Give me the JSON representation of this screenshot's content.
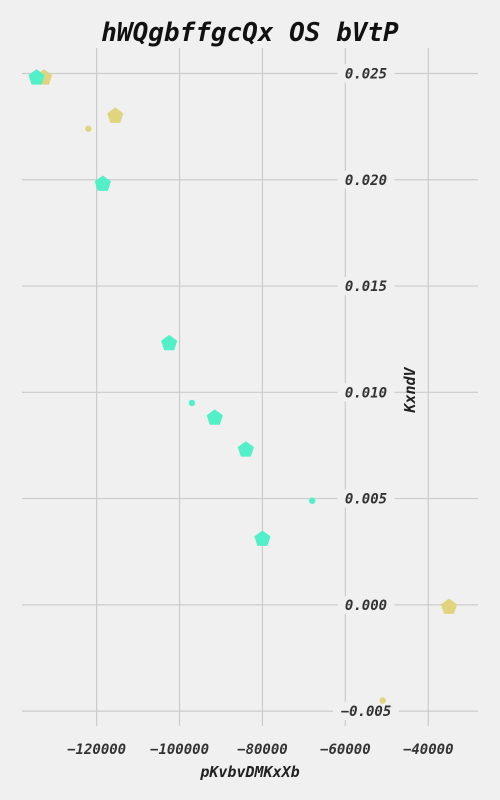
{
  "chart_data": {
    "type": "scatter",
    "title": "hWQgbffgcQx OS bVtP",
    "xlabel": "pKvbvDMKxXb",
    "ylabel": "KxndV",
    "xlim": [
      -138000,
      -28000
    ],
    "ylim": [
      -0.0057,
      0.0262
    ],
    "xticks": [
      -120000,
      -100000,
      -80000,
      -60000,
      -40000
    ],
    "xtick_labels": [
      "−120000",
      "−100000",
      "−80000",
      "−60000",
      "−40000"
    ],
    "yticks": [
      0.025,
      0.02,
      0.015,
      0.01,
      0.005,
      0.0,
      -0.005
    ],
    "ytick_labels": [
      "0.025",
      "0.020",
      "0.015",
      "0.010",
      "0.005",
      "0.000",
      "−0.005"
    ],
    "grid": true,
    "series": [
      {
        "color": "#e0d47e",
        "points": [
          {
            "x": -132700,
            "y": 0.0248,
            "marker": "pentagon"
          },
          {
            "x": -115500,
            "y": 0.023,
            "marker": "pentagon"
          },
          {
            "x": -122000,
            "y": 0.0224,
            "marker": "dot"
          },
          {
            "x": -35000,
            "y": -0.0001,
            "marker": "pentagon"
          },
          {
            "x": -51000,
            "y": -0.0045,
            "marker": "dot"
          }
        ]
      },
      {
        "color": "#52f0c8",
        "points": [
          {
            "x": -134500,
            "y": 0.0248,
            "marker": "pentagon"
          },
          {
            "x": -118500,
            "y": 0.0198,
            "marker": "pentagon"
          },
          {
            "x": -102500,
            "y": 0.0123,
            "marker": "pentagon"
          },
          {
            "x": -97000,
            "y": 0.0095,
            "marker": "dot"
          },
          {
            "x": -91500,
            "y": 0.0088,
            "marker": "pentagon"
          },
          {
            "x": -84000,
            "y": 0.0073,
            "marker": "pentagon"
          },
          {
            "x": -68000,
            "y": 0.0049,
            "marker": "dot"
          },
          {
            "x": -80000,
            "y": 0.0031,
            "marker": "pentagon"
          }
        ]
      }
    ]
  }
}
